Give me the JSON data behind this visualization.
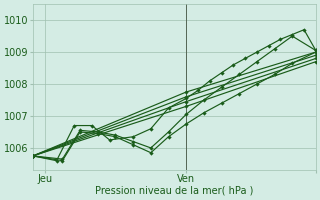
{
  "xlabel": "Pression niveau de la mer( hPa )",
  "ylim": [
    1005.3,
    1010.5
  ],
  "xlim": [
    0,
    48
  ],
  "yticks": [
    1006,
    1007,
    1008,
    1009,
    1010
  ],
  "xtick_positions": [
    2,
    26,
    48
  ],
  "xtick_labels": [
    "Jeu",
    "Ven",
    ""
  ],
  "vline_x": 26,
  "bg_color": "#d4ece4",
  "grid_color": "#a0c0b0",
  "line_color": "#1a5c1a",
  "marker": "D",
  "marker_size": 2.2,
  "line_width": 0.85,
  "series": [
    {
      "x": [
        0,
        5,
        8,
        11,
        14,
        17,
        20,
        23,
        26,
        29,
        32,
        35,
        38,
        41,
        44,
        48
      ],
      "y": [
        1005.75,
        1005.6,
        1006.5,
        1006.45,
        1006.35,
        1006.1,
        1005.85,
        1006.35,
        1006.75,
        1007.1,
        1007.4,
        1007.7,
        1008.0,
        1008.3,
        1008.65,
        1009.0
      ]
    },
    {
      "x": [
        0,
        5,
        8,
        11,
        14,
        17,
        20,
        23,
        26,
        29,
        32,
        35,
        38,
        41,
        44,
        48
      ],
      "y": [
        1005.75,
        1005.65,
        1006.55,
        1006.5,
        1006.4,
        1006.2,
        1006.0,
        1006.5,
        1007.05,
        1007.5,
        1007.9,
        1008.3,
        1008.7,
        1009.1,
        1009.5,
        1009.05
      ]
    },
    {
      "x": [
        0,
        4,
        7,
        10,
        13,
        17,
        20,
        23,
        26,
        28,
        30,
        32,
        34,
        36,
        38,
        40,
        42,
        44,
        46,
        48
      ],
      "y": [
        1005.75,
        1005.6,
        1006.7,
        1006.7,
        1006.25,
        1006.35,
        1006.6,
        1007.25,
        1007.55,
        1007.8,
        1008.1,
        1008.35,
        1008.6,
        1008.8,
        1009.0,
        1009.2,
        1009.4,
        1009.55,
        1009.7,
        1009.05
      ]
    },
    {
      "x": [
        0,
        26,
        48
      ],
      "y": [
        1005.75,
        1007.75,
        1009.0
      ]
    },
    {
      "x": [
        0,
        26,
        48
      ],
      "y": [
        1005.75,
        1007.6,
        1008.9
      ]
    },
    {
      "x": [
        0,
        26,
        48
      ],
      "y": [
        1005.75,
        1007.45,
        1008.8
      ]
    },
    {
      "x": [
        0,
        26,
        48
      ],
      "y": [
        1005.75,
        1007.3,
        1008.7
      ]
    }
  ]
}
